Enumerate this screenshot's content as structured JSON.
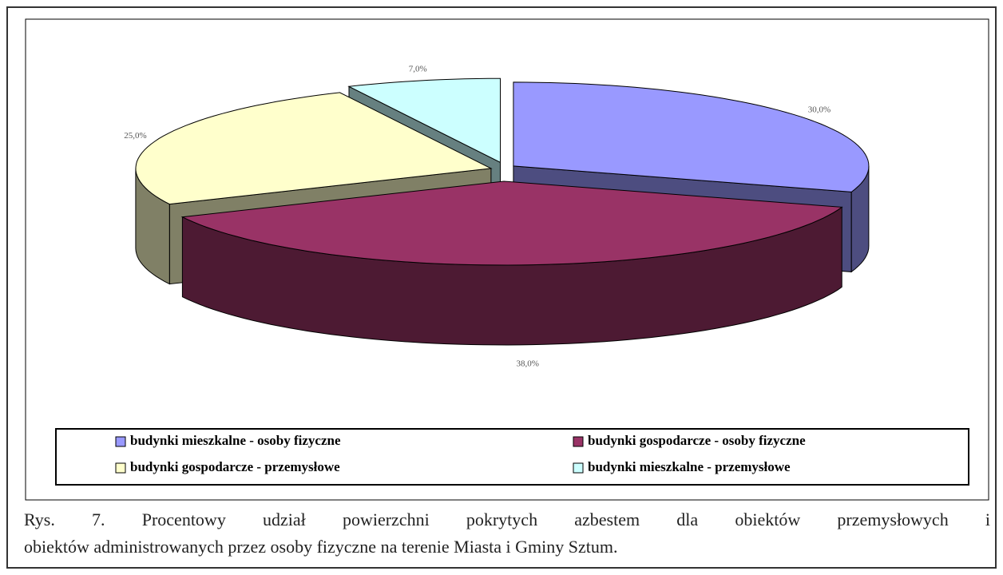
{
  "chart_data": {
    "type": "pie",
    "categories": [
      "budynki mieszkalne - osoby fizyczne",
      "budynki gospodarcze - osoby fizyczne",
      "budynki gospodarcze - przemysłowe",
      "budynki mieszkalne - przemysłowe"
    ],
    "values": [
      30,
      38,
      25,
      7
    ],
    "value_labels": [
      "30,0%",
      "38,0%",
      "25,0%",
      "7,0%"
    ],
    "colors": [
      "#9999ff",
      "#993366",
      "#ffffcc",
      "#ccffff"
    ]
  },
  "caption": [
    "Rys. 7. Procentowy udział powierzchni pokrytych azbestem dla obiektów przemysłowych i",
    "obiektów administrowanych przez osoby fizyczne na terenie Miasta i Gminy Sztum."
  ]
}
